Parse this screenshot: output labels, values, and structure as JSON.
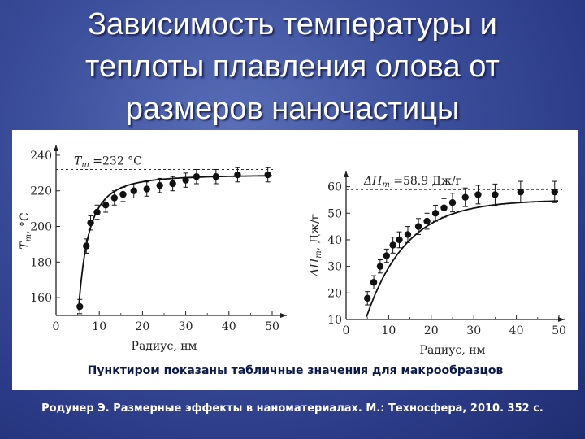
{
  "title_lines": [
    "Зависимость температуры и",
    "теплоты плавления олова от",
    "размеров наночастицы"
  ],
  "caption": "Пунктиром показаны табличные значения для макрообразцов",
  "citation": "Родунер Э. Размерные эффекты в наноматериалах. М.: Техносфера, 2010. 352 с.",
  "chart_data": [
    {
      "type": "scatter",
      "xlabel": "Радиус, нм",
      "ylabel_main": "T",
      "ylabel_sub": "m",
      "ylabel_unit": ", °C",
      "xlim": [
        0,
        50
      ],
      "ylim": [
        150,
        245
      ],
      "xticks": [
        0,
        10,
        20,
        30,
        40,
        50
      ],
      "yticks": [
        160,
        180,
        200,
        220,
        240
      ],
      "reference": {
        "value": 232,
        "label_main": "T",
        "label_sub": "m",
        "label_rest": " =232 °C"
      },
      "x": [
        5.5,
        7,
        8,
        9.5,
        11.5,
        13.5,
        15.5,
        18,
        21,
        24,
        27,
        30,
        32.5,
        37,
        42,
        49
      ],
      "y": [
        155,
        189,
        202,
        208,
        212,
        216,
        218,
        220,
        221,
        223,
        224,
        226,
        228,
        228,
        229,
        229
      ],
      "err": [
        4,
        4,
        4,
        4,
        4,
        4,
        4,
        4,
        4,
        4,
        4,
        4,
        4,
        4,
        4,
        4
      ],
      "fit_asymptote": 229,
      "fit_x0": 5.2
    },
    {
      "type": "scatter",
      "xlabel": "Радиус, нм",
      "ylabel_main": "ΔH",
      "ylabel_sub": "m",
      "ylabel_unit": ", Дж/г",
      "xlim": [
        0,
        50
      ],
      "ylim": [
        10,
        66
      ],
      "xticks": [
        0,
        10,
        20,
        30,
        40,
        50
      ],
      "yticks": [
        10,
        20,
        30,
        40,
        50,
        60
      ],
      "reference": {
        "value": 58.9,
        "label_main": "ΔH",
        "label_sub": "m",
        "label_rest": " =58.9 Дж/г"
      },
      "x": [
        5,
        6.5,
        8,
        9.5,
        11,
        12.5,
        14.5,
        17,
        19,
        21,
        23,
        25,
        28,
        31,
        35,
        41,
        49
      ],
      "y": [
        18,
        24,
        30,
        34,
        38,
        40,
        42,
        45,
        47,
        50,
        52,
        54,
        56,
        57,
        57,
        58,
        58
      ],
      "err": [
        2.5,
        2.5,
        2.5,
        2.5,
        3,
        3,
        3,
        3,
        3,
        3,
        3.5,
        3.5,
        3.5,
        3.5,
        4,
        4,
        4
      ],
      "fit_asymptote": 55,
      "fit_x0": 4.8
    }
  ]
}
